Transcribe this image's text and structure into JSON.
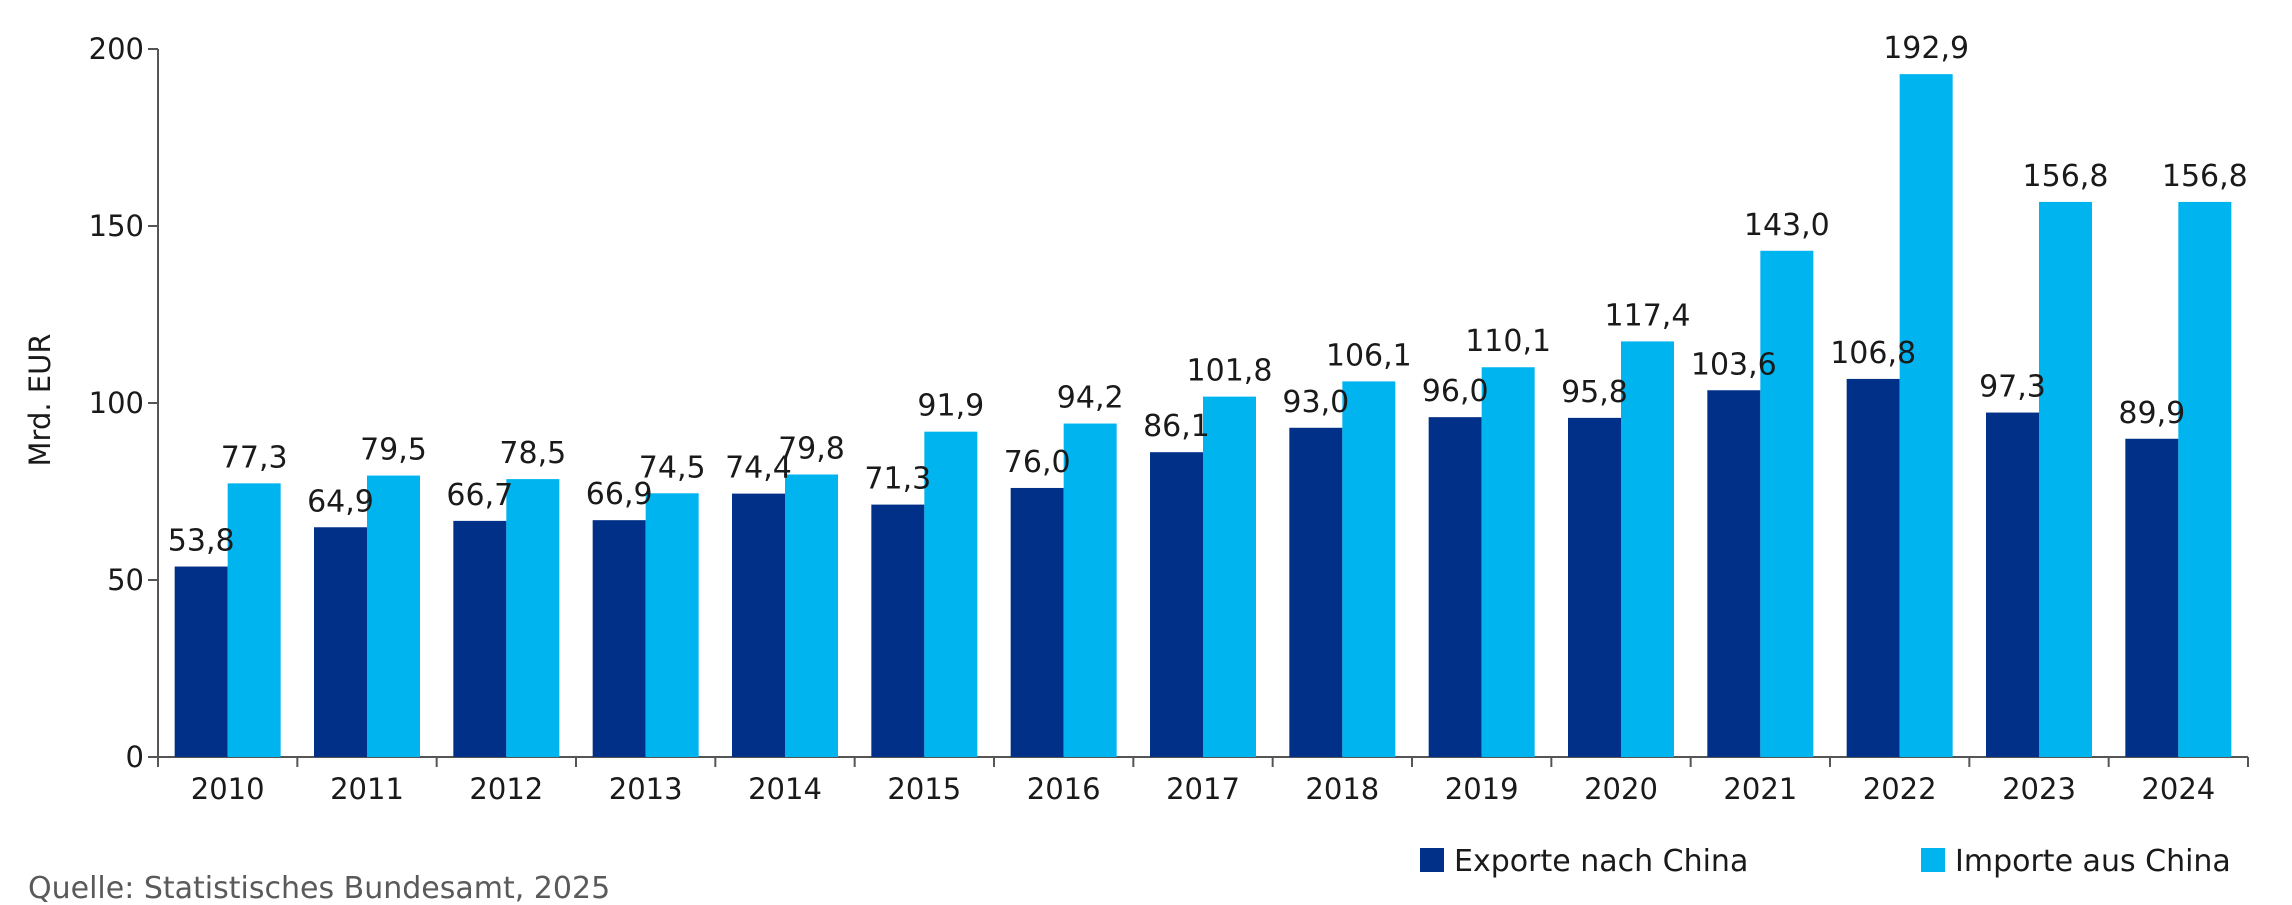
{
  "chart_data": {
    "type": "bar",
    "categories": [
      "2010",
      "2011",
      "2012",
      "2013",
      "2014",
      "2015",
      "2016",
      "2017",
      "2018",
      "2019",
      "2020",
      "2021",
      "2022",
      "2023",
      "2024"
    ],
    "series": [
      {
        "name": "Exporte nach China",
        "color": "#003087",
        "values": [
          53.8,
          64.9,
          66.7,
          66.9,
          74.4,
          71.3,
          76.0,
          86.1,
          93.0,
          96.0,
          95.8,
          103.6,
          106.8,
          97.3,
          89.9
        ],
        "labels": [
          "53,8",
          "64,9",
          "66,7",
          "66,9",
          "74,4",
          "71,3",
          "76,0",
          "86,1",
          "93,0",
          "96,0",
          "95,8",
          "103,6",
          "106,8",
          "97,3",
          "89,9"
        ]
      },
      {
        "name": "Importe aus China",
        "color": "#00b4f0",
        "values": [
          77.3,
          79.5,
          78.5,
          74.5,
          79.8,
          91.9,
          94.2,
          101.8,
          106.1,
          110.1,
          117.4,
          143.0,
          192.9,
          156.8,
          156.8
        ],
        "labels": [
          "77,3",
          "79,5",
          "78,5",
          "74,5",
          "79,8",
          "91,9",
          "94,2",
          "101,8",
          "106,1",
          "110,1",
          "117,4",
          "143,0",
          "192,9",
          "156,8",
          "156,8"
        ]
      }
    ],
    "ylabel": "Mrd. EUR",
    "ylim": [
      0,
      200
    ],
    "yticks": [
      "0",
      "50",
      "100",
      "150",
      "200"
    ],
    "grid": false,
    "legend_position": "bottom-right"
  },
  "source": "Quelle: Statistisches Bundesamt, 2025"
}
